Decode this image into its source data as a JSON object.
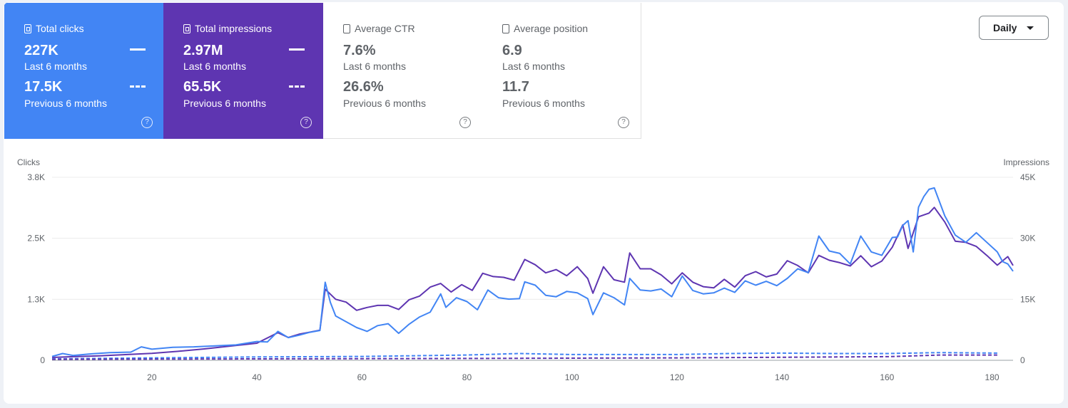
{
  "metrics": {
    "clicks": {
      "label": "Total clicks",
      "value": "227K",
      "value_period": "Last 6 months",
      "prev_value": "17.5K",
      "prev_period": "Previous 6 months"
    },
    "impressions": {
      "label": "Total impressions",
      "value": "2.97M",
      "value_period": "Last 6 months",
      "prev_value": "65.5K",
      "prev_period": "Previous 6 months"
    },
    "ctr": {
      "label": "Average CTR",
      "value": "7.6%",
      "value_period": "Last 6 months",
      "prev_value": "26.6%",
      "prev_period": "Previous 6 months"
    },
    "position": {
      "label": "Average position",
      "value": "6.9",
      "value_period": "Last 6 months",
      "prev_value": "11.7",
      "prev_period": "Previous 6 months"
    }
  },
  "help_icon": "?",
  "granularity": {
    "selected": "Daily"
  },
  "colors": {
    "clicks": "#4285f4",
    "impressions": "#5e35b1",
    "grid": "#ececec"
  },
  "chart_data": {
    "type": "line",
    "ylabel": "Clicks",
    "y2label": "Impressions",
    "ylim": [
      0,
      3800
    ],
    "y2lim": [
      0,
      45000
    ],
    "yticks": [
      "0",
      "1.3K",
      "2.5K",
      "3.8K"
    ],
    "y2ticks": [
      "0",
      "15K",
      "30K",
      "45K"
    ],
    "xticks": [
      20,
      40,
      60,
      80,
      100,
      120,
      140,
      160,
      180
    ],
    "x_range": [
      1,
      184
    ],
    "series": [
      {
        "name": "Total clicks",
        "axis": "left",
        "style": "solid",
        "points": [
          [
            1,
            80
          ],
          [
            3,
            140
          ],
          [
            5,
            100
          ],
          [
            8,
            130
          ],
          [
            12,
            160
          ],
          [
            16,
            170
          ],
          [
            18,
            280
          ],
          [
            20,
            230
          ],
          [
            24,
            270
          ],
          [
            28,
            280
          ],
          [
            32,
            300
          ],
          [
            36,
            320
          ],
          [
            40,
            390
          ],
          [
            42,
            380
          ],
          [
            44,
            600
          ],
          [
            46,
            470
          ],
          [
            48,
            520
          ],
          [
            50,
            580
          ],
          [
            52,
            620
          ],
          [
            53,
            1620
          ],
          [
            54,
            1200
          ],
          [
            55,
            920
          ],
          [
            57,
            800
          ],
          [
            59,
            680
          ],
          [
            61,
            600
          ],
          [
            63,
            720
          ],
          [
            65,
            760
          ],
          [
            67,
            560
          ],
          [
            69,
            750
          ],
          [
            71,
            900
          ],
          [
            73,
            1000
          ],
          [
            75,
            1380
          ],
          [
            76,
            1100
          ],
          [
            78,
            1300
          ],
          [
            80,
            1220
          ],
          [
            82,
            1050
          ],
          [
            84,
            1460
          ],
          [
            86,
            1300
          ],
          [
            88,
            1270
          ],
          [
            90,
            1280
          ],
          [
            91,
            1630
          ],
          [
            93,
            1560
          ],
          [
            95,
            1350
          ],
          [
            97,
            1320
          ],
          [
            99,
            1430
          ],
          [
            101,
            1400
          ],
          [
            103,
            1280
          ],
          [
            104,
            950
          ],
          [
            106,
            1400
          ],
          [
            108,
            1300
          ],
          [
            110,
            1150
          ],
          [
            111,
            1700
          ],
          [
            113,
            1460
          ],
          [
            115,
            1440
          ],
          [
            117,
            1480
          ],
          [
            119,
            1320
          ],
          [
            121,
            1750
          ],
          [
            123,
            1450
          ],
          [
            125,
            1380
          ],
          [
            127,
            1400
          ],
          [
            129,
            1500
          ],
          [
            131,
            1410
          ],
          [
            133,
            1650
          ],
          [
            135,
            1560
          ],
          [
            137,
            1640
          ],
          [
            139,
            1550
          ],
          [
            141,
            1700
          ],
          [
            143,
            1900
          ],
          [
            145,
            1820
          ],
          [
            147,
            2580
          ],
          [
            149,
            2270
          ],
          [
            151,
            2220
          ],
          [
            153,
            2000
          ],
          [
            155,
            2580
          ],
          [
            157,
            2250
          ],
          [
            159,
            2180
          ],
          [
            161,
            2550
          ],
          [
            162,
            2560
          ],
          [
            163,
            2800
          ],
          [
            164,
            2900
          ],
          [
            165,
            2250
          ],
          [
            166,
            3180
          ],
          [
            167,
            3400
          ],
          [
            168,
            3550
          ],
          [
            169,
            3580
          ],
          [
            171,
            3000
          ],
          [
            173,
            2600
          ],
          [
            175,
            2450
          ],
          [
            177,
            2650
          ],
          [
            179,
            2450
          ],
          [
            181,
            2250
          ],
          [
            182,
            2050
          ],
          [
            183,
            2000
          ],
          [
            184,
            1850
          ]
        ]
      },
      {
        "name": "Total impressions",
        "axis": "right",
        "style": "solid",
        "points": [
          [
            1,
            700
          ],
          [
            5,
            900
          ],
          [
            10,
            1100
          ],
          [
            15,
            1400
          ],
          [
            20,
            1700
          ],
          [
            25,
            2200
          ],
          [
            30,
            2800
          ],
          [
            35,
            3500
          ],
          [
            40,
            4200
          ],
          [
            44,
            6800
          ],
          [
            46,
            5600
          ],
          [
            48,
            6400
          ],
          [
            50,
            6900
          ],
          [
            52,
            7400
          ],
          [
            53,
            17500
          ],
          [
            55,
            15000
          ],
          [
            57,
            14300
          ],
          [
            59,
            12300
          ],
          [
            61,
            13000
          ],
          [
            63,
            13500
          ],
          [
            65,
            13500
          ],
          [
            67,
            12500
          ],
          [
            69,
            14900
          ],
          [
            71,
            15800
          ],
          [
            73,
            18000
          ],
          [
            75,
            18900
          ],
          [
            77,
            16800
          ],
          [
            79,
            18600
          ],
          [
            81,
            17200
          ],
          [
            83,
            21400
          ],
          [
            85,
            20600
          ],
          [
            87,
            20400
          ],
          [
            89,
            19700
          ],
          [
            91,
            24800
          ],
          [
            93,
            23500
          ],
          [
            95,
            21500
          ],
          [
            97,
            22300
          ],
          [
            99,
            20800
          ],
          [
            101,
            23000
          ],
          [
            103,
            20100
          ],
          [
            104,
            16500
          ],
          [
            106,
            23000
          ],
          [
            108,
            19800
          ],
          [
            110,
            19200
          ],
          [
            111,
            26400
          ],
          [
            113,
            22500
          ],
          [
            115,
            22500
          ],
          [
            117,
            21000
          ],
          [
            119,
            18800
          ],
          [
            121,
            21500
          ],
          [
            123,
            19200
          ],
          [
            125,
            18100
          ],
          [
            127,
            17800
          ],
          [
            129,
            19900
          ],
          [
            131,
            18000
          ],
          [
            133,
            20800
          ],
          [
            135,
            21800
          ],
          [
            137,
            20500
          ],
          [
            139,
            21200
          ],
          [
            141,
            24500
          ],
          [
            143,
            23300
          ],
          [
            145,
            21500
          ],
          [
            147,
            25800
          ],
          [
            149,
            24600
          ],
          [
            151,
            24000
          ],
          [
            153,
            23200
          ],
          [
            155,
            25700
          ],
          [
            157,
            23000
          ],
          [
            159,
            24400
          ],
          [
            161,
            27800
          ],
          [
            163,
            33300
          ],
          [
            164,
            27500
          ],
          [
            166,
            35300
          ],
          [
            168,
            36200
          ],
          [
            169,
            37600
          ],
          [
            171,
            34000
          ],
          [
            173,
            29300
          ],
          [
            175,
            29000
          ],
          [
            177,
            28000
          ],
          [
            179,
            25800
          ],
          [
            181,
            23400
          ],
          [
            183,
            25500
          ],
          [
            184,
            23300
          ]
        ]
      },
      {
        "name": "Total clicks (previous)",
        "axis": "left",
        "style": "dashed",
        "points": [
          [
            1,
            30
          ],
          [
            20,
            50
          ],
          [
            40,
            70
          ],
          [
            60,
            80
          ],
          [
            80,
            110
          ],
          [
            90,
            140
          ],
          [
            100,
            120
          ],
          [
            120,
            120
          ],
          [
            130,
            140
          ],
          [
            140,
            150
          ],
          [
            150,
            140
          ],
          [
            160,
            140
          ],
          [
            170,
            160
          ],
          [
            181,
            150
          ]
        ]
      },
      {
        "name": "Total impressions (previous)",
        "axis": "right",
        "style": "dashed",
        "points": [
          [
            1,
            250
          ],
          [
            40,
            350
          ],
          [
            80,
            450
          ],
          [
            120,
            600
          ],
          [
            160,
            900
          ],
          [
            170,
            1300
          ],
          [
            181,
            1300
          ]
        ]
      }
    ]
  }
}
